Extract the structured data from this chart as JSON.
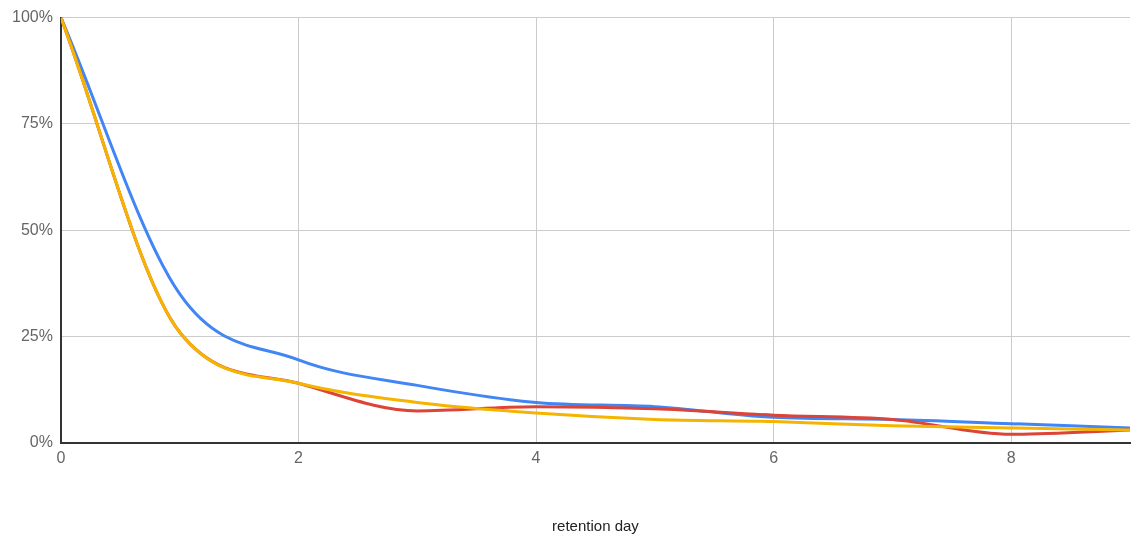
{
  "chart_data": {
    "type": "line",
    "xlabel": "retention day",
    "x": [
      0,
      1,
      2,
      3,
      4,
      5,
      6,
      7,
      8,
      9
    ],
    "series": [
      {
        "color": "#4285f4",
        "values": [
          100,
          35,
          19.5,
          13.5,
          9.5,
          8.5,
          6,
          5.5,
          4.5,
          3.5
        ]
      },
      {
        "color": "#db4437",
        "values": [
          100,
          26,
          14,
          7.5,
          8.5,
          8,
          6.5,
          5.5,
          2,
          3
        ]
      },
      {
        "color": "#f4b400",
        "values": [
          100,
          26,
          14,
          9.5,
          7,
          5.5,
          5,
          4,
          3.5,
          3
        ]
      }
    ],
    "xlim": [
      0,
      9
    ],
    "xticks": [
      0,
      2,
      4,
      6,
      8
    ],
    "ylim": [
      0,
      100
    ],
    "yticks": [
      {
        "value": 0,
        "label": "0%"
      },
      {
        "value": 25,
        "label": "25%"
      },
      {
        "value": 50,
        "label": "50%"
      },
      {
        "value": 75,
        "label": "75%"
      },
      {
        "value": 100,
        "label": "100%"
      }
    ],
    "grid": true,
    "legend": false,
    "marker": "none",
    "line_style": "solid"
  }
}
